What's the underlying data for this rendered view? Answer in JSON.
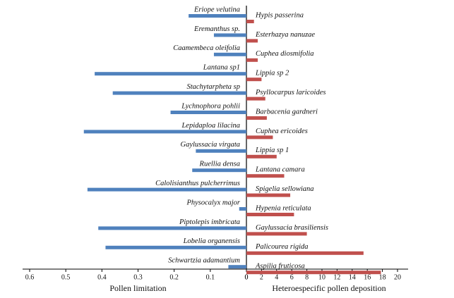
{
  "chart_data": [
    {
      "type": "hbar",
      "xlabel": "Pollen limitation",
      "color": "#4f81bd",
      "categories": [
        "Eriope velutina",
        "Eremanthus sp.",
        "Caamembeca oleifolia",
        "Lantana sp1",
        "Stachytarpheta  sp",
        "Lychnophora pohlii",
        "Lepidaploa lilacina",
        "Gaylussacia virgata",
        "Ruellia densa",
        "Calolisianthus pulcherrimus",
        "Physocalyx major",
        "Piptolepis imbricata",
        "Lobelia organensis",
        "Schwartzia  adamantium"
      ],
      "values": [
        0.16,
        0.09,
        0.09,
        0.42,
        0.37,
        0.21,
        0.45,
        0.14,
        0.15,
        0.44,
        0.02,
        0.41,
        0.39,
        0.05
      ],
      "xlim": [
        0.6,
        0
      ],
      "xticks": [
        0.6,
        0.5,
        0.4,
        0.3,
        0.2,
        0.1,
        0
      ]
    },
    {
      "type": "hbar",
      "xlabel": "Heteroespecific pollen deposition",
      "color": "#c0504d",
      "categories": [
        "Hypis passerina",
        "Esterhazya nanuzae",
        "Cuphea diosmifolia",
        "Lippia sp 2",
        "Psyllocarpus laricoides",
        "Barbacenia gardneri",
        "Cuphea ericoides",
        "Lippia sp 1",
        "Lantana camara",
        "Spigelia sellowiana",
        "Hypenia reticulata",
        "Gaylussacia brasiliensis",
        "Palicourea rigida",
        "Aspilia fruticosa"
      ],
      "values": [
        1,
        1.5,
        1.5,
        2,
        2.5,
        2.7,
        3.5,
        4,
        5,
        5.8,
        6.3,
        8,
        15.5,
        17.8
      ],
      "xlim": [
        0,
        20
      ],
      "xticks": [
        0,
        2,
        4,
        6,
        8,
        10,
        12,
        14,
        16,
        18,
        20
      ]
    }
  ]
}
